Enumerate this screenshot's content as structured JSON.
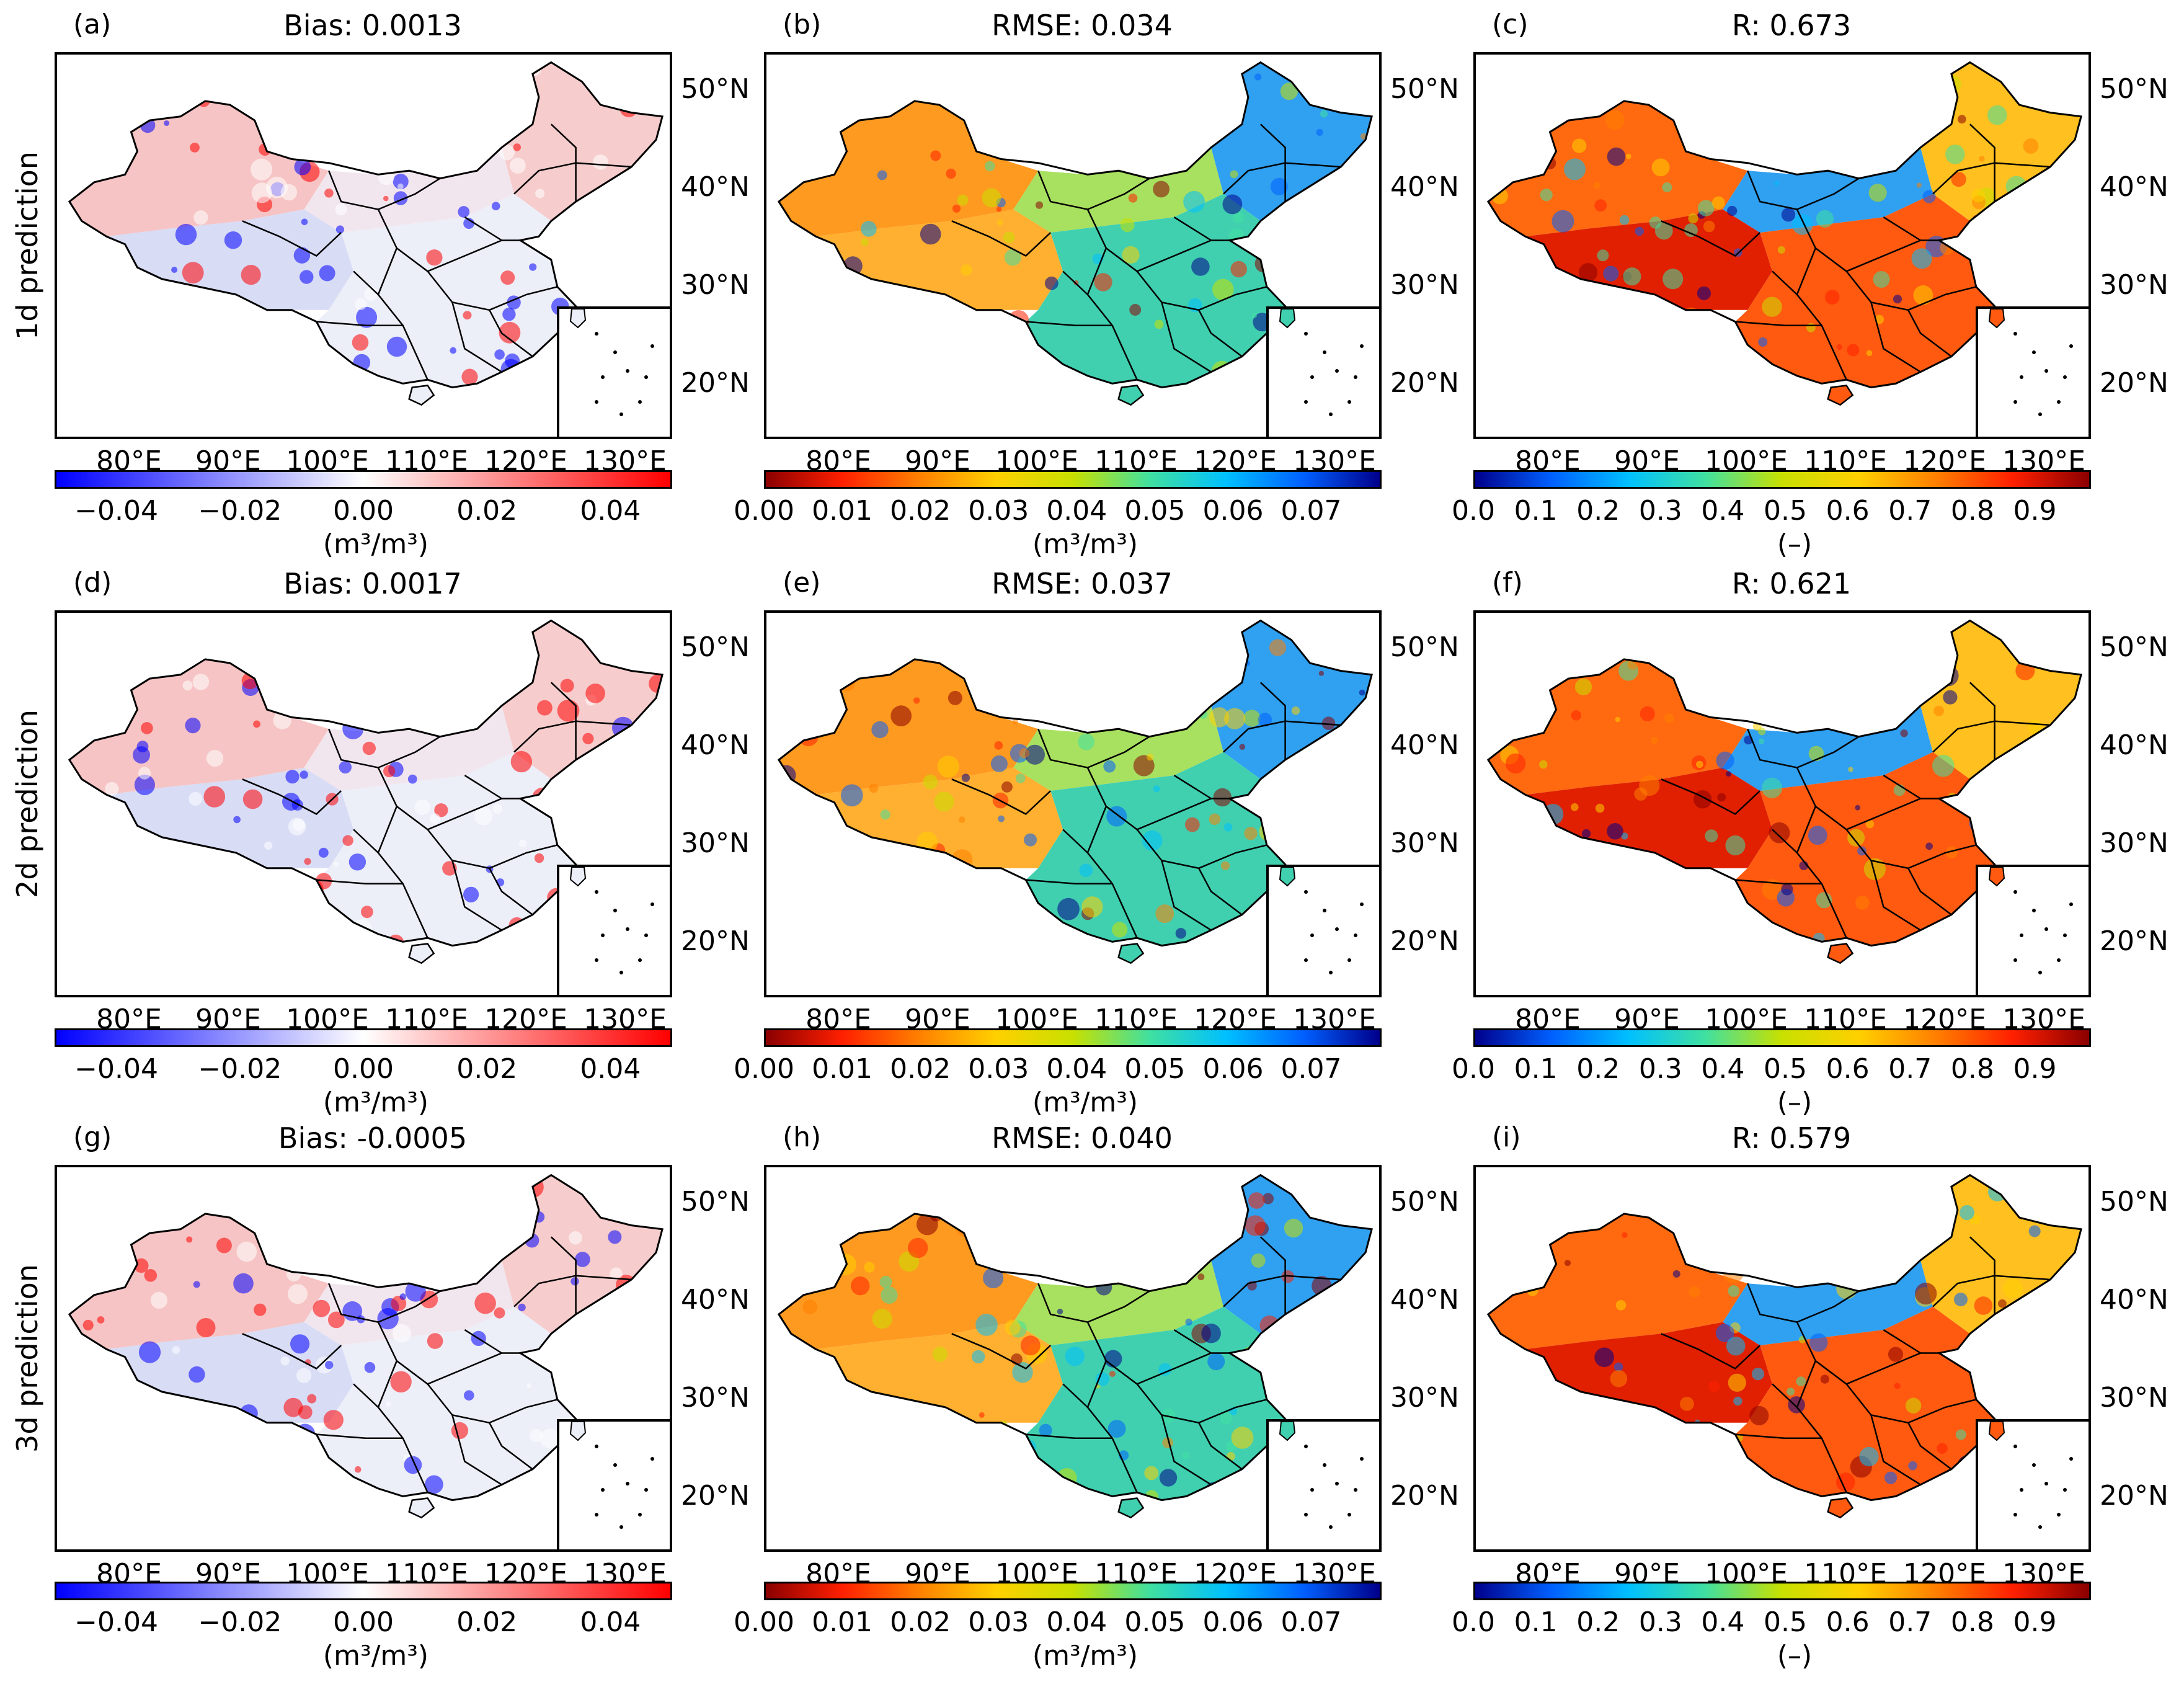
{
  "figure": {
    "rows": [
      {
        "label": "1d prediction"
      },
      {
        "label": "2d prediction"
      },
      {
        "label": "3d prediction"
      }
    ],
    "lon_labels": [
      "80°E",
      "90°E",
      "100°E",
      "110°E",
      "120°E",
      "130°E"
    ],
    "lat_labels": [
      "50°N",
      "40°N",
      "30°N",
      "20°N"
    ],
    "colorbars": {
      "bias": {
        "ticks": [
          "−0.04",
          "−0.02",
          "0.00",
          "0.02",
          "0.04"
        ],
        "unit": "(m³/m³)",
        "colors": [
          "#0000ff",
          "#ffffff",
          "#ff0000"
        ]
      },
      "rmse": {
        "ticks": [
          "0.00",
          "0.01",
          "0.02",
          "0.03",
          "0.04",
          "0.05",
          "0.06",
          "0.07"
        ],
        "unit": "(m³/m³)",
        "colors": [
          "#8b0000",
          "#ff2000",
          "#ff8000",
          "#ffd000",
          "#c8e000",
          "#40e0a0",
          "#00c0ff",
          "#0060ff",
          "#00008b"
        ]
      },
      "r": {
        "ticks": [
          "0.0",
          "0.1",
          "0.2",
          "0.3",
          "0.4",
          "0.5",
          "0.6",
          "0.7",
          "0.8",
          "0.9"
        ],
        "unit": "(–)",
        "colors": [
          "#00008b",
          "#0060ff",
          "#00c0ff",
          "#40e0a0",
          "#c8e000",
          "#ffd000",
          "#ff8000",
          "#ff2000",
          "#8b0000"
        ]
      }
    },
    "panels": [
      {
        "letter": "(a)",
        "title": "Bias: 0.0013",
        "metric": "bias"
      },
      {
        "letter": "(b)",
        "title": "RMSE: 0.034",
        "metric": "rmse"
      },
      {
        "letter": "(c)",
        "title": "R: 0.673",
        "metric": "r"
      },
      {
        "letter": "(d)",
        "title": "Bias: 0.0017",
        "metric": "bias"
      },
      {
        "letter": "(e)",
        "title": "RMSE: 0.037",
        "metric": "rmse"
      },
      {
        "letter": "(f)",
        "title": "R: 0.621",
        "metric": "r"
      },
      {
        "letter": "(g)",
        "title": "Bias: -0.0005",
        "metric": "bias"
      },
      {
        "letter": "(h)",
        "title": "RMSE: 0.040",
        "metric": "rmse"
      },
      {
        "letter": "(i)",
        "title": "R: 0.579",
        "metric": "r"
      }
    ],
    "region_fill": {
      "bias": {
        "west": "#f6c4c4",
        "tibet": "#d8dcf5",
        "east": "#eceef8",
        "northeast": "#f6cccc",
        "center": "#f2e6ee"
      },
      "rmse": {
        "west": "#ff9a20",
        "tibet": "#ffb030",
        "east": "#40d0b0",
        "northeast": "#30a0f0",
        "center": "#a8e060"
      },
      "r": {
        "west": "#ff6a10",
        "tibet": "#e02000",
        "east": "#ff5a10",
        "northeast": "#ffc020",
        "center": "#30a0f0"
      }
    }
  }
}
